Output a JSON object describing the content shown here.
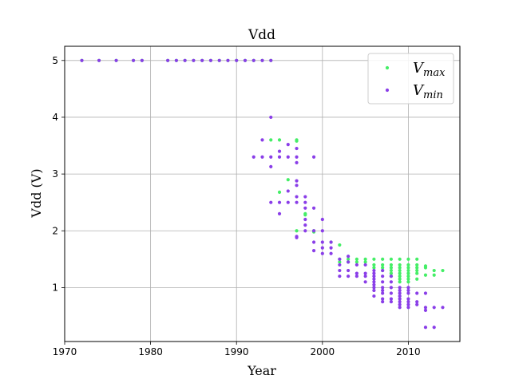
{
  "chart_data": {
    "type": "scatter",
    "title": "Vdd",
    "xlabel": "Year",
    "ylabel": "Vdd (V)",
    "xlim": [
      1970,
      2016
    ],
    "ylim": [
      0.05,
      5.25
    ],
    "xticks": [
      1970,
      1980,
      1990,
      2000,
      2010
    ],
    "yticks": [
      1,
      2,
      3,
      4,
      5
    ],
    "grid": true,
    "legend_position": "top-right",
    "series": [
      {
        "name": "Vmax",
        "legend_main": "V",
        "legend_sub": "max",
        "color": "#44ee66",
        "points": [
          [
            1972,
            5
          ],
          [
            1974,
            5
          ],
          [
            1976,
            5
          ],
          [
            1978,
            5
          ],
          [
            1979,
            5
          ],
          [
            1982,
            5
          ],
          [
            1983,
            5
          ],
          [
            1984,
            5
          ],
          [
            1985,
            5
          ],
          [
            1986,
            5
          ],
          [
            1987,
            5
          ],
          [
            1988,
            5
          ],
          [
            1989,
            5
          ],
          [
            1990,
            5
          ],
          [
            1991,
            5
          ],
          [
            1992,
            5
          ],
          [
            1993,
            5
          ],
          [
            1994,
            5
          ],
          [
            1994,
            3.6
          ],
          [
            1995,
            3.6
          ],
          [
            1997,
            3.6
          ],
          [
            1997,
            3.58
          ],
          [
            1996,
            2.9
          ],
          [
            1995,
            2.68
          ],
          [
            1998,
            2.3
          ],
          [
            1998,
            2.28
          ],
          [
            1997,
            2.0
          ],
          [
            1999,
            2.0
          ],
          [
            1999,
            1.98
          ],
          [
            2001,
            1.8
          ],
          [
            2002,
            1.75
          ],
          [
            2002,
            1.5
          ],
          [
            2003,
            1.5
          ],
          [
            2004,
            1.5
          ],
          [
            2005,
            1.5
          ],
          [
            2006,
            1.5
          ],
          [
            2007,
            1.5
          ],
          [
            2008,
            1.5
          ],
          [
            2009,
            1.5
          ],
          [
            2010,
            1.5
          ],
          [
            2011,
            1.5
          ],
          [
            2002,
            1.45
          ],
          [
            2003,
            1.45
          ],
          [
            2004,
            1.45
          ],
          [
            2005,
            1.45
          ],
          [
            2006,
            1.4
          ],
          [
            2007,
            1.4
          ],
          [
            2008,
            1.4
          ],
          [
            2009,
            1.4
          ],
          [
            2010,
            1.4
          ],
          [
            2011,
            1.4
          ],
          [
            2012,
            1.38
          ],
          [
            2006,
            1.35
          ],
          [
            2007,
            1.35
          ],
          [
            2008,
            1.35
          ],
          [
            2009,
            1.35
          ],
          [
            2010,
            1.35
          ],
          [
            2011,
            1.35
          ],
          [
            2012,
            1.35
          ],
          [
            2007,
            1.3
          ],
          [
            2008,
            1.3
          ],
          [
            2009,
            1.3
          ],
          [
            2010,
            1.3
          ],
          [
            2011,
            1.3
          ],
          [
            2013,
            1.3
          ],
          [
            2014,
            1.3
          ],
          [
            2008,
            1.25
          ],
          [
            2009,
            1.25
          ],
          [
            2010,
            1.25
          ],
          [
            2011,
            1.25
          ],
          [
            2012,
            1.22
          ],
          [
            2013,
            1.22
          ],
          [
            2008,
            1.2
          ],
          [
            2009,
            1.2
          ],
          [
            2010,
            1.2
          ],
          [
            2009,
            1.15
          ],
          [
            2010,
            1.15
          ],
          [
            2011,
            1.15
          ],
          [
            2009,
            1.1
          ],
          [
            2010,
            1.1
          ]
        ]
      },
      {
        "name": "Vmin",
        "legend_main": "V",
        "legend_sub": "min",
        "color": "#8a3ee8",
        "points": [
          [
            1972,
            5
          ],
          [
            1974,
            5
          ],
          [
            1976,
            5
          ],
          [
            1978,
            5
          ],
          [
            1979,
            5
          ],
          [
            1982,
            5
          ],
          [
            1983,
            5
          ],
          [
            1984,
            5
          ],
          [
            1985,
            5
          ],
          [
            1986,
            5
          ],
          [
            1987,
            5
          ],
          [
            1988,
            5
          ],
          [
            1989,
            5
          ],
          [
            1990,
            5
          ],
          [
            1991,
            5
          ],
          [
            1992,
            5
          ],
          [
            1993,
            5
          ],
          [
            1994,
            5
          ],
          [
            1994,
            4.0
          ],
          [
            1993,
            3.6
          ],
          [
            1996,
            3.52
          ],
          [
            1997,
            3.45
          ],
          [
            1995,
            3.4
          ],
          [
            1992,
            3.3
          ],
          [
            1993,
            3.3
          ],
          [
            1994,
            3.3
          ],
          [
            1995,
            3.3
          ],
          [
            1996,
            3.3
          ],
          [
            1997,
            3.3
          ],
          [
            1999,
            3.3
          ],
          [
            1997,
            3.2
          ],
          [
            1994,
            3.13
          ],
          [
            1997,
            2.88
          ],
          [
            1997,
            2.8
          ],
          [
            1996,
            2.7
          ],
          [
            1997,
            2.6
          ],
          [
            1998,
            2.6
          ],
          [
            1998,
            2.5
          ],
          [
            1994,
            2.5
          ],
          [
            1995,
            2.5
          ],
          [
            1996,
            2.5
          ],
          [
            1997,
            2.5
          ],
          [
            1998,
            2.4
          ],
          [
            1999,
            2.4
          ],
          [
            1995,
            2.3
          ],
          [
            1998,
            2.2
          ],
          [
            2000,
            2.2
          ],
          [
            1998,
            2.1
          ],
          [
            1997,
            1.9
          ],
          [
            1997,
            1.88
          ],
          [
            1998,
            2.0
          ],
          [
            1999,
            2.0
          ],
          [
            2000,
            2.0
          ],
          [
            1999,
            1.8
          ],
          [
            2000,
            1.8
          ],
          [
            2001,
            1.8
          ],
          [
            2000,
            1.7
          ],
          [
            2001,
            1.7
          ],
          [
            1999,
            1.65
          ],
          [
            2000,
            1.6
          ],
          [
            2001,
            1.6
          ],
          [
            2003,
            1.55
          ],
          [
            2002,
            1.5
          ],
          [
            2003,
            1.45
          ],
          [
            2002,
            1.4
          ],
          [
            2004,
            1.4
          ],
          [
            2005,
            1.4
          ],
          [
            2002,
            1.3
          ],
          [
            2003,
            1.3
          ],
          [
            2004,
            1.25
          ],
          [
            2005,
            1.25
          ],
          [
            2002,
            1.2
          ],
          [
            2003,
            1.2
          ],
          [
            2004,
            1.2
          ],
          [
            2005,
            1.2
          ],
          [
            2005,
            1.1
          ],
          [
            2006,
            1.3
          ],
          [
            2006,
            1.25
          ],
          [
            2006,
            1.2
          ],
          [
            2006,
            1.15
          ],
          [
            2006,
            1.1
          ],
          [
            2006,
            1.05
          ],
          [
            2006,
            1.0
          ],
          [
            2006,
            0.95
          ],
          [
            2006,
            0.85
          ],
          [
            2007,
            1.3
          ],
          [
            2007,
            1.2
          ],
          [
            2007,
            1.1
          ],
          [
            2007,
            1.0
          ],
          [
            2007,
            0.95
          ],
          [
            2007,
            0.9
          ],
          [
            2007,
            0.8
          ],
          [
            2007,
            0.75
          ],
          [
            2008,
            1.2
          ],
          [
            2008,
            1.1
          ],
          [
            2008,
            1.0
          ],
          [
            2008,
            0.9
          ],
          [
            2008,
            0.8
          ],
          [
            2008,
            0.75
          ],
          [
            2009,
            1.0
          ],
          [
            2009,
            0.95
          ],
          [
            2009,
            0.9
          ],
          [
            2009,
            0.85
          ],
          [
            2009,
            0.8
          ],
          [
            2009,
            0.75
          ],
          [
            2009,
            0.7
          ],
          [
            2009,
            0.65
          ],
          [
            2010,
            1.0
          ],
          [
            2010,
            0.95
          ],
          [
            2010,
            0.9
          ],
          [
            2010,
            0.8
          ],
          [
            2010,
            0.75
          ],
          [
            2010,
            0.7
          ],
          [
            2010,
            0.65
          ],
          [
            2011,
            0.9
          ],
          [
            2011,
            0.75
          ],
          [
            2011,
            0.7
          ],
          [
            2012,
            0.9
          ],
          [
            2012,
            0.65
          ],
          [
            2012,
            0.6
          ],
          [
            2012,
            0.3
          ],
          [
            2013,
            0.65
          ],
          [
            2013,
            0.3
          ],
          [
            2014,
            0.65
          ]
        ]
      }
    ]
  }
}
